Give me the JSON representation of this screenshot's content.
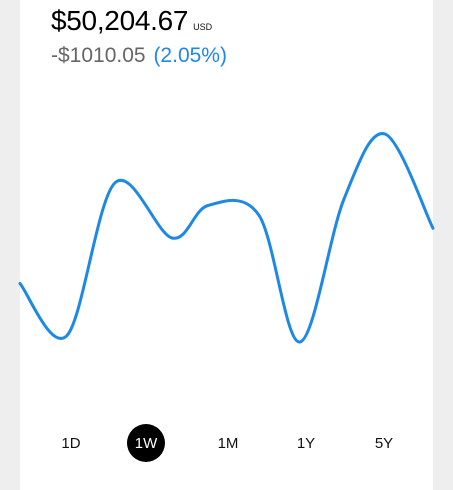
{
  "summary": {
    "balance": "$50,204.67",
    "currency": "USD",
    "change_amount": "-$1010.05",
    "change_percent": "(2.05%)"
  },
  "colors": {
    "accent": "#1E88E5",
    "selected_range_bg": "#000000"
  },
  "chart": {
    "type": "line",
    "series": "price",
    "values": [
      34,
      18,
      65,
      48,
      58,
      55,
      16,
      60,
      80,
      51
    ]
  },
  "ranges": {
    "items": [
      {
        "label": "1D"
      },
      {
        "label": "1W"
      },
      {
        "label": "1M"
      },
      {
        "label": "1Y"
      },
      {
        "label": "5Y"
      }
    ],
    "selected": "1W"
  }
}
